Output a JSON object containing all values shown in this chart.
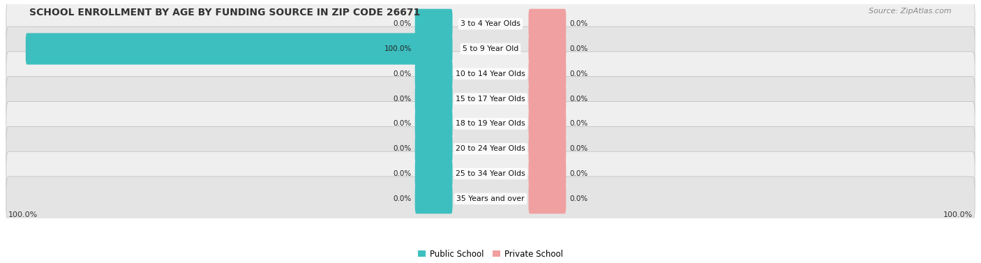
{
  "title": "SCHOOL ENROLLMENT BY AGE BY FUNDING SOURCE IN ZIP CODE 26671",
  "source": "Source: ZipAtlas.com",
  "categories": [
    "3 to 4 Year Olds",
    "5 to 9 Year Old",
    "10 to 14 Year Olds",
    "15 to 17 Year Olds",
    "18 to 19 Year Olds",
    "20 to 24 Year Olds",
    "25 to 34 Year Olds",
    "35 Years and over"
  ],
  "public_values": [
    0.0,
    100.0,
    0.0,
    0.0,
    0.0,
    0.0,
    0.0,
    0.0
  ],
  "private_values": [
    0.0,
    0.0,
    0.0,
    0.0,
    0.0,
    0.0,
    0.0,
    0.0
  ],
  "public_color": "#3DBFBF",
  "private_color": "#F0A0A0",
  "public_label": "Public School",
  "private_label": "Private School",
  "row_colors": [
    "#EFEFEF",
    "#E4E4E4"
  ],
  "row_border_color": "#CCCCCC",
  "title_fontsize": 10,
  "label_fontsize": 8,
  "source_fontsize": 8,
  "bottom_left_label": "100.0%",
  "bottom_right_label": "100.0%",
  "xlim_left": -100,
  "xlim_right": 100,
  "center_pub_bar_width": 8,
  "center_priv_bar_width": 8
}
